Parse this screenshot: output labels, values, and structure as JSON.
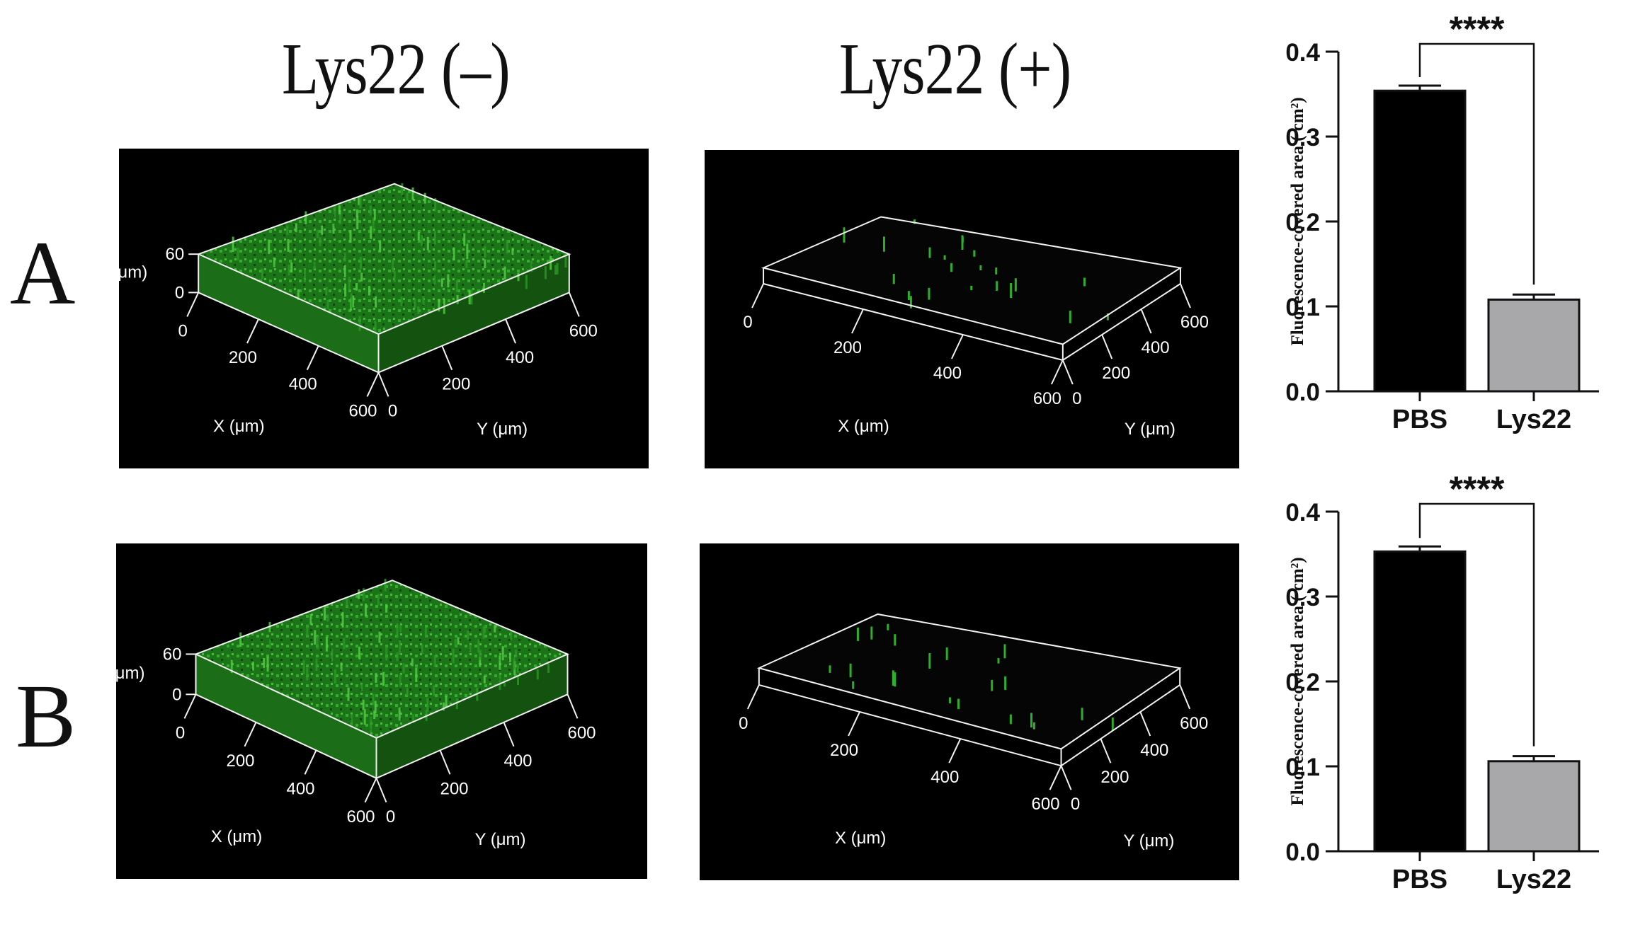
{
  "columns": {
    "left_title": "Lys22 (–)",
    "right_title": "Lys22 (+)"
  },
  "rows": {
    "a_label": "A",
    "b_label": "B"
  },
  "confocal": {
    "z_label": "Z (μm)",
    "x_label": "X (μm)",
    "y_label": "Y (μm)",
    "z_ticks": [
      "60",
      "0"
    ],
    "xy_ticks": [
      "0",
      "200",
      "400",
      "600"
    ],
    "colors": {
      "background": "#000000",
      "biofilm": "#2fae2a",
      "frame": "#f2f2f2"
    }
  },
  "chart_data": [
    {
      "type": "bar",
      "categories": [
        "PBS",
        "Lys22"
      ],
      "values": [
        0.354,
        0.108
      ],
      "errors": [
        0.006,
        0.006
      ],
      "bar_colors": [
        "#000000",
        "#a8a8ab"
      ],
      "ylabel": "Fluorescence-covered area ( cm²)",
      "ylim": [
        0.0,
        0.4
      ],
      "yticks": [
        "0.0",
        "0.1",
        "0.2",
        "0.3",
        "0.4"
      ],
      "significance": "****",
      "grid": false
    },
    {
      "type": "bar",
      "categories": [
        "PBS",
        "Lys22"
      ],
      "values": [
        0.353,
        0.106
      ],
      "errors": [
        0.006,
        0.006
      ],
      "bar_colors": [
        "#000000",
        "#a8a8ab"
      ],
      "ylabel": "Fluorescence-covered area ( cm²)",
      "ylim": [
        0.0,
        0.4
      ],
      "yticks": [
        "0.0",
        "0.1",
        "0.2",
        "0.3",
        "0.4"
      ],
      "significance": "****",
      "grid": false
    }
  ]
}
